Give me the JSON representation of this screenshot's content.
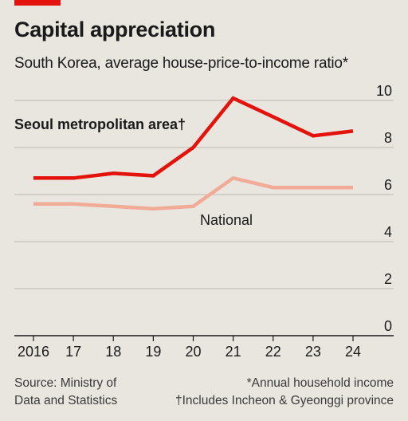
{
  "header": {
    "title": "Capital appreciation",
    "subtitle": "South Korea, average house-price-to-income ratio*"
  },
  "footer": {
    "source_line1": "Source: Ministry of",
    "source_line2": "Data and Statistics",
    "note1": "*Annual household income",
    "note2": "†Includes Incheon & Gyeonggi province"
  },
  "chart_data": {
    "type": "line",
    "title": "Capital appreciation",
    "subtitle": "South Korea, average house-price-to-income ratio*",
    "x": [
      2016,
      2017,
      2018,
      2019,
      2020,
      2021,
      2022,
      2023,
      2024
    ],
    "x_tick_labels": [
      "2016",
      "17",
      "18",
      "19",
      "20",
      "21",
      "22",
      "23",
      "24"
    ],
    "y_ticks": [
      0,
      2,
      4,
      6,
      8,
      10
    ],
    "ylim": [
      0,
      10
    ],
    "y_axis_side": "right",
    "grid": true,
    "series": [
      {
        "name": "Seoul metropolitan area†",
        "color": "#e3120b",
        "values": [
          6.7,
          6.7,
          6.9,
          6.8,
          8.0,
          10.1,
          9.3,
          8.5,
          8.7
        ]
      },
      {
        "name": "National",
        "color": "#f2ab96",
        "values": [
          5.6,
          5.6,
          5.5,
          5.4,
          5.5,
          6.7,
          6.3,
          6.3,
          6.3
        ]
      }
    ]
  }
}
